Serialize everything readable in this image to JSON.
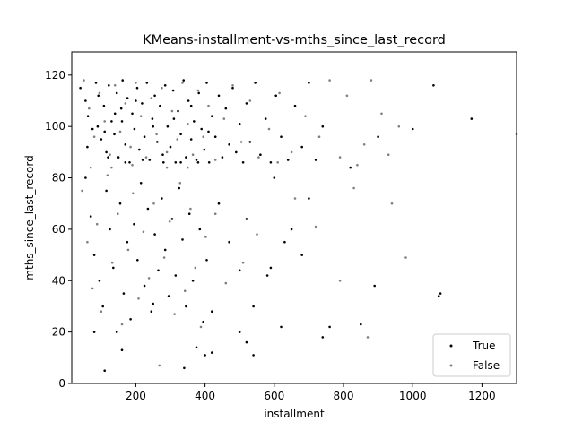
{
  "chart_data": {
    "type": "scatter",
    "title": "KMeans-installment-vs-mths_since_last_record",
    "xlabel": "installment",
    "ylabel": "mths_since_last_record",
    "xlim": [
      15,
      1300
    ],
    "ylim": [
      0,
      129
    ],
    "xticks": [
      200,
      400,
      600,
      800,
      1000,
      1200
    ],
    "yticks": [
      0,
      20,
      40,
      60,
      80,
      100,
      120
    ],
    "grid": false,
    "legend_position": "lower-right",
    "series": [
      {
        "name": "True",
        "color": "#000000",
        "values": [
          [
            40,
            115
          ],
          [
            55,
            110
          ],
          [
            62,
            104
          ],
          [
            75,
            99
          ],
          [
            85,
            117
          ],
          [
            92,
            112
          ],
          [
            100,
            95
          ],
          [
            108,
            108
          ],
          [
            115,
            90
          ],
          [
            122,
            116
          ],
          [
            130,
            102
          ],
          [
            138,
            97
          ],
          [
            145,
            113
          ],
          [
            150,
            88
          ],
          [
            158,
            107
          ],
          [
            162,
            118
          ],
          [
            170,
            93
          ],
          [
            176,
            111
          ],
          [
            182,
            86
          ],
          [
            190,
            105
          ],
          [
            196,
            99
          ],
          [
            204,
            115
          ],
          [
            210,
            91
          ],
          [
            218,
            109
          ],
          [
            225,
            96
          ],
          [
            232,
            117
          ],
          [
            240,
            87
          ],
          [
            248,
            103
          ],
          [
            255,
            112
          ],
          [
            262,
            94
          ],
          [
            270,
            108
          ],
          [
            278,
            89
          ],
          [
            285,
            116
          ],
          [
            292,
            100
          ],
          [
            300,
            92
          ],
          [
            308,
            114
          ],
          [
            315,
            86
          ],
          [
            322,
            106
          ],
          [
            330,
            97
          ],
          [
            338,
            118
          ],
          [
            345,
            88
          ],
          [
            352,
            110
          ],
          [
            360,
            95
          ],
          [
            368,
            102
          ],
          [
            375,
            87
          ],
          [
            382,
            113
          ],
          [
            390,
            99
          ],
          [
            398,
            91
          ],
          [
            405,
            117
          ],
          [
            412,
            86
          ],
          [
            420,
            104
          ],
          [
            430,
            96
          ],
          [
            440,
            112
          ],
          [
            450,
            88
          ],
          [
            460,
            107
          ],
          [
            470,
            93
          ],
          [
            480,
            115
          ],
          [
            490,
            90
          ],
          [
            500,
            101
          ],
          [
            510,
            86
          ],
          [
            520,
            109
          ],
          [
            530,
            94
          ],
          [
            545,
            117
          ],
          [
            560,
            89
          ],
          [
            575,
            103
          ],
          [
            590,
            86
          ],
          [
            605,
            112
          ],
          [
            620,
            96
          ],
          [
            640,
            87
          ],
          [
            660,
            108
          ],
          [
            680,
            92
          ],
          [
            700,
            117
          ],
          [
            720,
            87
          ],
          [
            740,
            100
          ],
          [
            120,
            88
          ],
          [
            170,
            86
          ],
          [
            220,
            87
          ],
          [
            280,
            86
          ],
          [
            330,
            86
          ],
          [
            380,
            86
          ],
          [
            90,
            100
          ],
          [
            140,
            105
          ],
          [
            200,
            110
          ],
          [
            250,
            100
          ],
          [
            310,
            103
          ],
          [
            360,
            108
          ],
          [
            410,
            98
          ],
          [
            60,
            92
          ],
          [
            110,
            98
          ],
          [
            160,
            102
          ],
          [
            55,
            80
          ],
          [
            70,
            65
          ],
          [
            80,
            50
          ],
          [
            95,
            40
          ],
          [
            105,
            30
          ],
          [
            115,
            75
          ],
          [
            125,
            60
          ],
          [
            135,
            45
          ],
          [
            145,
            20
          ],
          [
            155,
            70
          ],
          [
            165,
            35
          ],
          [
            175,
            55
          ],
          [
            185,
            25
          ],
          [
            195,
            62
          ],
          [
            205,
            48
          ],
          [
            215,
            78
          ],
          [
            225,
            38
          ],
          [
            235,
            68
          ],
          [
            245,
            28
          ],
          [
            255,
            58
          ],
          [
            265,
            44
          ],
          [
            275,
            72
          ],
          [
            285,
            52
          ],
          [
            295,
            34
          ],
          [
            305,
            64
          ],
          [
            315,
            42
          ],
          [
            325,
            76
          ],
          [
            335,
            56
          ],
          [
            345,
            30
          ],
          [
            355,
            66
          ],
          [
            365,
            40
          ],
          [
            375,
            14
          ],
          [
            385,
            60
          ],
          [
            395,
            24
          ],
          [
            405,
            48
          ],
          [
            420,
            12
          ],
          [
            440,
            70
          ],
          [
            470,
            55
          ],
          [
            500,
            44
          ],
          [
            520,
            64
          ],
          [
            540,
            30
          ],
          [
            580,
            42
          ],
          [
            600,
            80
          ],
          [
            620,
            22
          ],
          [
            650,
            60
          ],
          [
            700,
            72
          ],
          [
            760,
            22
          ],
          [
            820,
            84
          ],
          [
            850,
            23
          ],
          [
            890,
            38
          ],
          [
            900,
            96
          ],
          [
            1000,
            99
          ],
          [
            1060,
            116
          ],
          [
            1075,
            34
          ],
          [
            1080,
            35
          ],
          [
            1170,
            103
          ],
          [
            110,
            5
          ],
          [
            160,
            13
          ],
          [
            250,
            31
          ],
          [
            340,
            6
          ],
          [
            400,
            11
          ],
          [
            420,
            28
          ],
          [
            500,
            20
          ],
          [
            520,
            16
          ],
          [
            540,
            11
          ],
          [
            590,
            45
          ],
          [
            630,
            55
          ],
          [
            680,
            50
          ],
          [
            740,
            18
          ],
          [
            80,
            20
          ]
        ]
      },
      {
        "name": "False",
        "color": "#808080",
        "values": [
          [
            50,
            118
          ],
          [
            65,
            107
          ],
          [
            80,
            96
          ],
          [
            95,
            113
          ],
          [
            110,
            102
          ],
          [
            125,
            89
          ],
          [
            140,
            116
          ],
          [
            155,
            98
          ],
          [
            170,
            109
          ],
          [
            185,
            92
          ],
          [
            200,
            117
          ],
          [
            215,
            104
          ],
          [
            230,
            88
          ],
          [
            245,
            111
          ],
          [
            260,
            97
          ],
          [
            275,
            115
          ],
          [
            290,
            90
          ],
          [
            305,
            106
          ],
          [
            320,
            95
          ],
          [
            335,
            117
          ],
          [
            350,
            101
          ],
          [
            365,
            89
          ],
          [
            380,
            114
          ],
          [
            395,
            96
          ],
          [
            410,
            108
          ],
          [
            430,
            87
          ],
          [
            455,
            103
          ],
          [
            480,
            116
          ],
          [
            505,
            94
          ],
          [
            530,
            110
          ],
          [
            555,
            88
          ],
          [
            585,
            99
          ],
          [
            615,
            113
          ],
          [
            650,
            90
          ],
          [
            690,
            104
          ],
          [
            730,
            96
          ],
          [
            760,
            118
          ],
          [
            790,
            88
          ],
          [
            810,
            112
          ],
          [
            840,
            85
          ],
          [
            860,
            93
          ],
          [
            880,
            118
          ],
          [
            910,
            105
          ],
          [
            930,
            89
          ],
          [
            960,
            100
          ],
          [
            1300,
            97
          ],
          [
            45,
            75
          ],
          [
            60,
            55
          ],
          [
            75,
            37
          ],
          [
            88,
            62
          ],
          [
            100,
            28
          ],
          [
            118,
            81
          ],
          [
            132,
            47
          ],
          [
            148,
            66
          ],
          [
            160,
            23
          ],
          [
            178,
            52
          ],
          [
            192,
            74
          ],
          [
            208,
            33
          ],
          [
            222,
            59
          ],
          [
            238,
            41
          ],
          [
            252,
            70
          ],
          [
            268,
            7
          ],
          [
            282,
            49
          ],
          [
            298,
            63
          ],
          [
            312,
            27
          ],
          [
            328,
            78
          ],
          [
            342,
            36
          ],
          [
            358,
            68
          ],
          [
            372,
            45
          ],
          [
            388,
            22
          ],
          [
            402,
            57
          ],
          [
            430,
            66
          ],
          [
            460,
            39
          ],
          [
            510,
            47
          ],
          [
            550,
            58
          ],
          [
            610,
            86
          ],
          [
            660,
            72
          ],
          [
            720,
            61
          ],
          [
            790,
            40
          ],
          [
            830,
            76
          ],
          [
            870,
            18
          ],
          [
            940,
            70
          ],
          [
            980,
            49
          ],
          [
            70,
            84
          ],
          [
            130,
            84
          ],
          [
            190,
            85
          ],
          [
            290,
            84
          ],
          [
            350,
            84
          ]
        ]
      }
    ]
  }
}
